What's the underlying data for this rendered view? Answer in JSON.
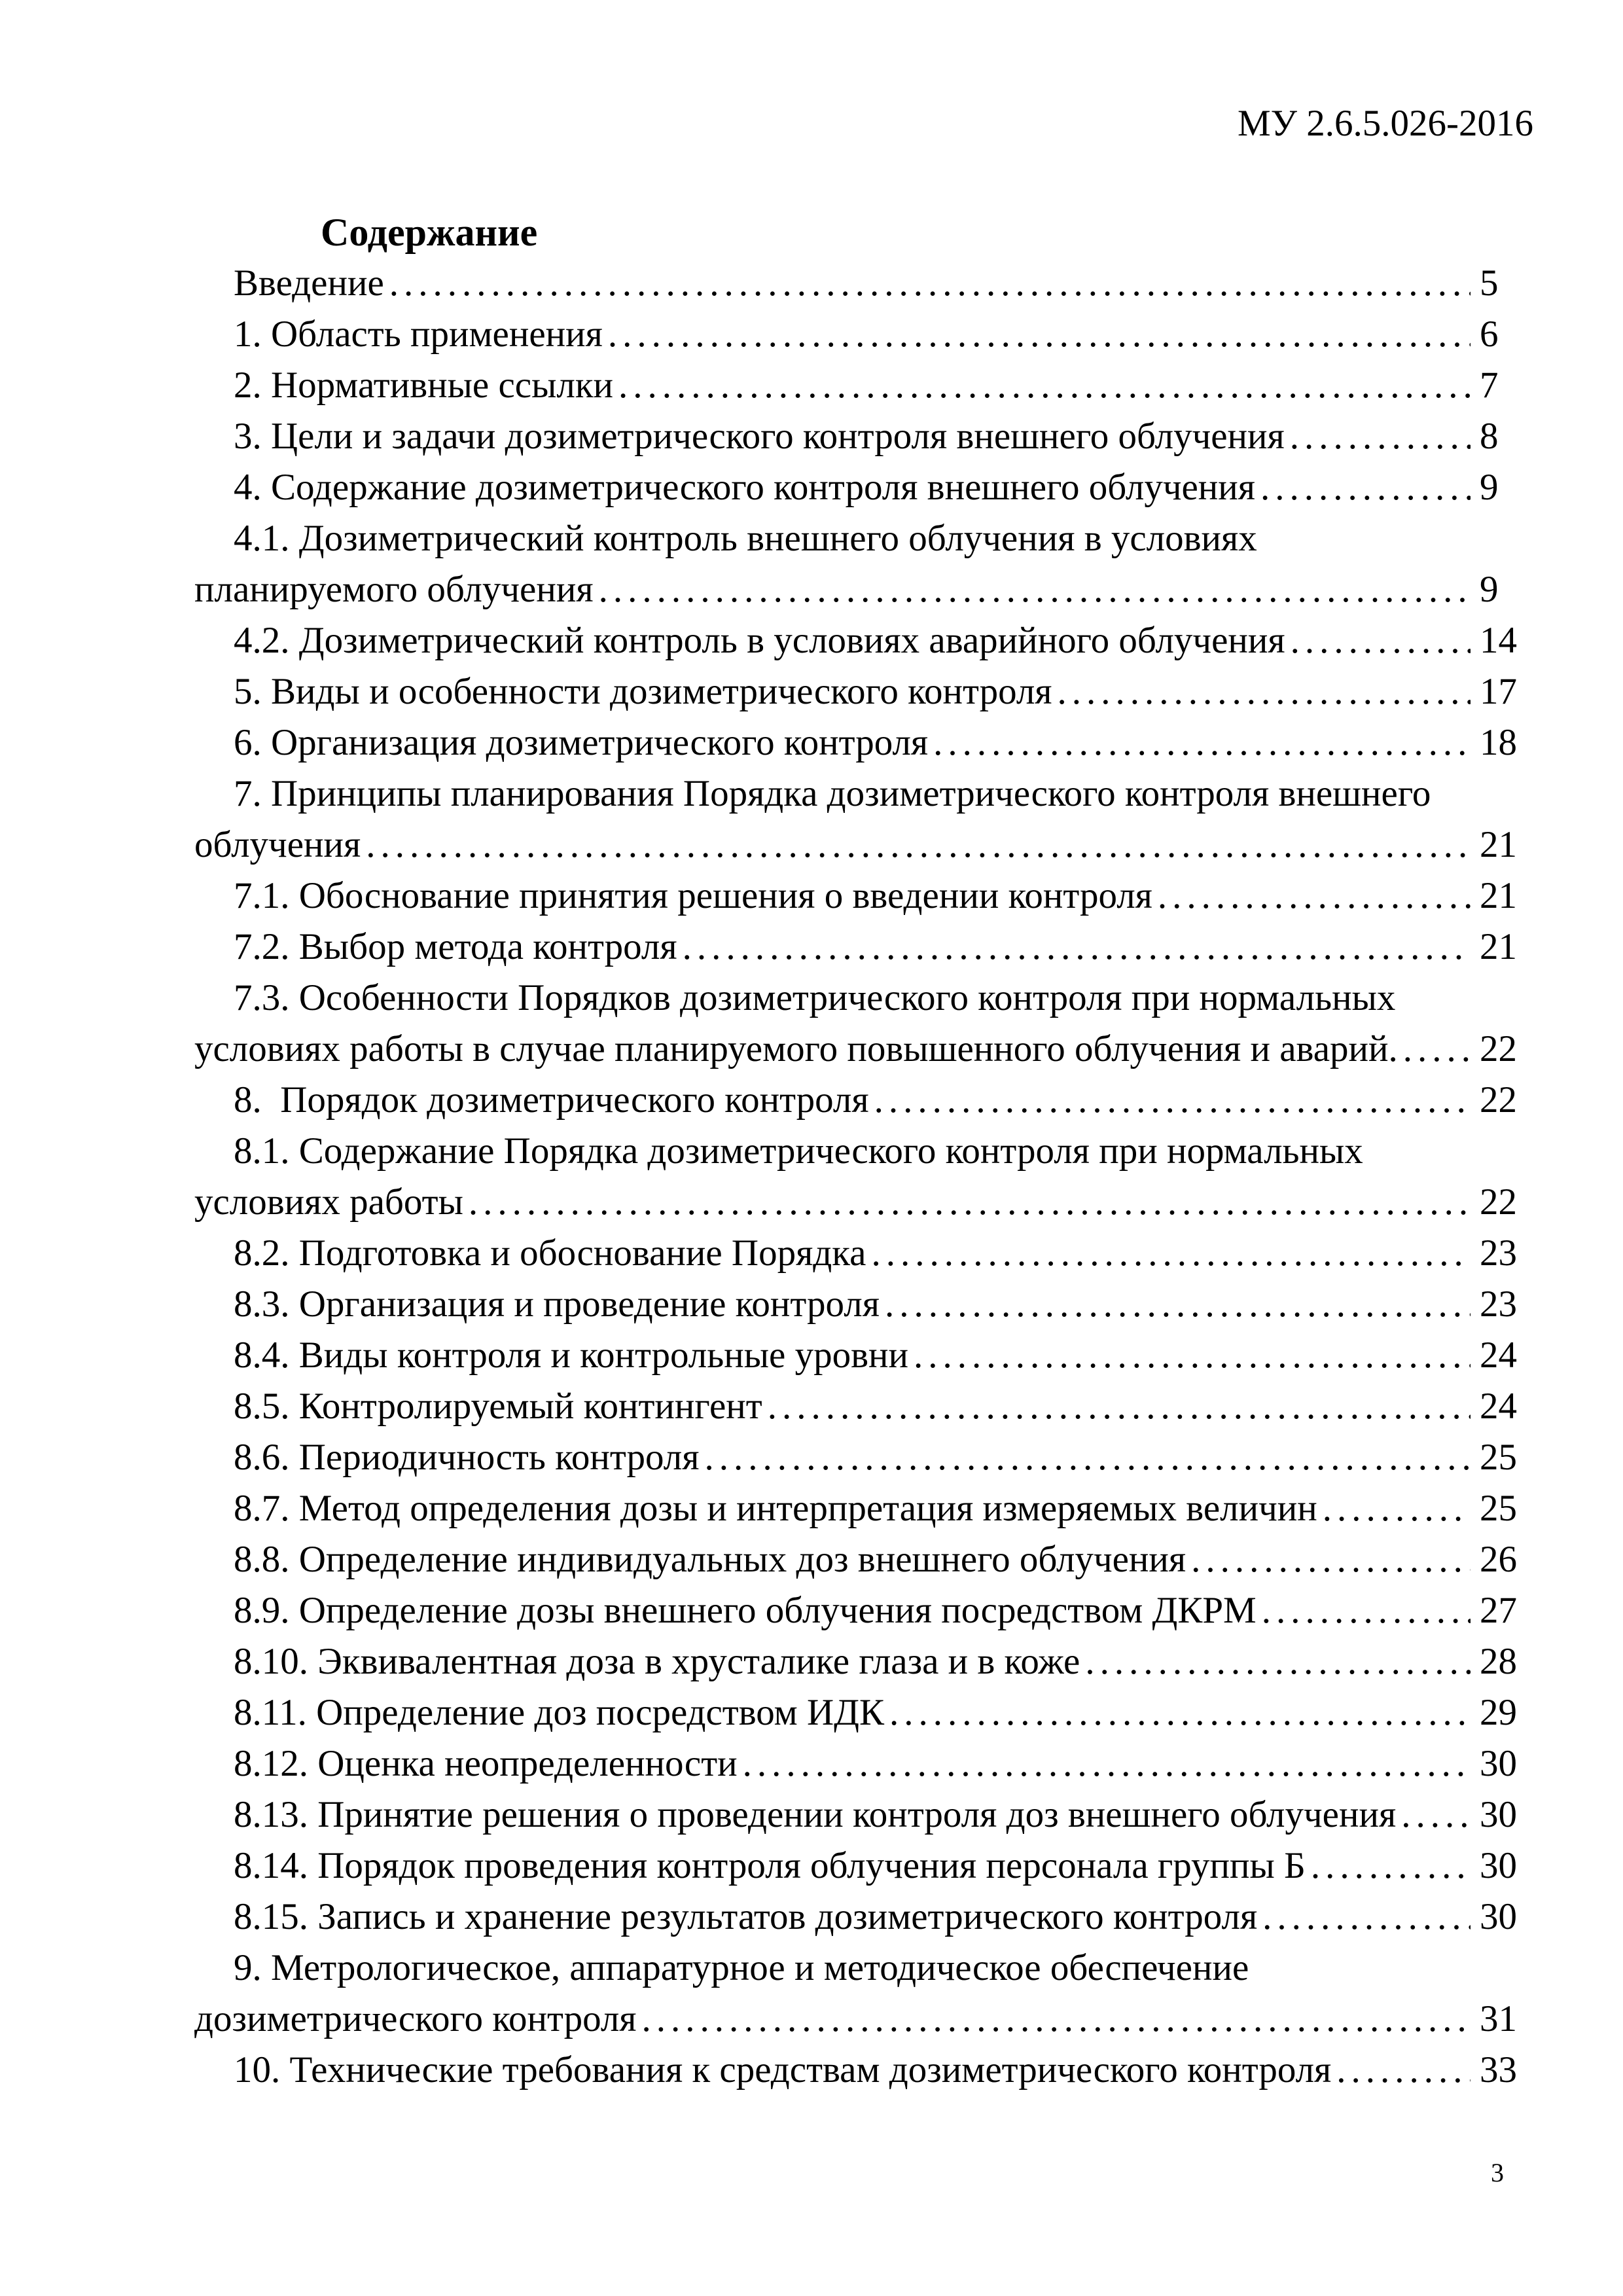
{
  "header": {
    "doc_code": "МУ 2.6.5.026-2016"
  },
  "toc": {
    "title": "Содержание",
    "lines": [
      {
        "indent": true,
        "text": "Введение",
        "page": "5"
      },
      {
        "indent": true,
        "text": "1. Область применения",
        "page": "6"
      },
      {
        "indent": true,
        "text": "2. Нормативные ссылки",
        "page": "7"
      },
      {
        "indent": true,
        "text": "3. Цели и задачи дозиметрического контроля внешнего облучения",
        "page": "8"
      },
      {
        "indent": true,
        "text": "4. Содержание дозиметрического контроля внешнего облучения",
        "page": "9"
      },
      {
        "indent": true,
        "text": "4.1. Дозиметрический контроль внешнего облучения в условиях",
        "page": null
      },
      {
        "indent": false,
        "text": "планируемого облучения",
        "page": "9"
      },
      {
        "indent": true,
        "text": "4.2. Дозиметрический контроль в условиях аварийного облучения",
        "page": "14"
      },
      {
        "indent": true,
        "text": "5. Виды и особенности дозиметрического контроля",
        "page": "17"
      },
      {
        "indent": true,
        "text": "6. Организация дозиметрического контроля",
        "page": "18"
      },
      {
        "indent": true,
        "text": "7. Принципы планирования Порядка дозиметрического контроля внешнего",
        "page": null
      },
      {
        "indent": false,
        "text": "облучения",
        "page": "21"
      },
      {
        "indent": true,
        "text": "7.1. Обоснование принятия решения о введении контроля",
        "page": "21"
      },
      {
        "indent": true,
        "text": "7.2. Выбор метода контроля",
        "page": "21"
      },
      {
        "indent": true,
        "text": "7.3. Особенности Порядков дозиметрического контроля при нормальных",
        "page": null
      },
      {
        "indent": false,
        "text": "условиях работы в случае планируемого повышенного облучения и аварий.",
        "page": "22"
      },
      {
        "indent": true,
        "text": "8.  Порядок дозиметрического контроля",
        "page": "22"
      },
      {
        "indent": true,
        "text": "8.1. Содержание Порядка дозиметрического контроля при нормальных",
        "page": null
      },
      {
        "indent": false,
        "text": "условиях работы",
        "page": "22"
      },
      {
        "indent": true,
        "text": "8.2. Подготовка и обоснование Порядка",
        "page": "23"
      },
      {
        "indent": true,
        "text": "8.3. Организация и проведение контроля",
        "page": "23"
      },
      {
        "indent": true,
        "text": "8.4. Виды контроля и контрольные уровни",
        "page": "24"
      },
      {
        "indent": true,
        "text": "8.5. Контролируемый контингент",
        "page": "24"
      },
      {
        "indent": true,
        "text": "8.6. Периодичность контроля",
        "page": "25"
      },
      {
        "indent": true,
        "text": "8.7. Метод определения дозы и интерпретация измеряемых величин",
        "page": "25"
      },
      {
        "indent": true,
        "text": "8.8. Определение индивидуальных доз внешнего облучения",
        "page": "26"
      },
      {
        "indent": true,
        "text": "8.9. Определение дозы внешнего облучения посредством ДКРМ",
        "page": "27"
      },
      {
        "indent": true,
        "text": "8.10. Эквивалентная доза в хрусталике глаза и в коже",
        "page": "28"
      },
      {
        "indent": true,
        "text": "8.11. Определение доз посредством ИДК",
        "page": "29"
      },
      {
        "indent": true,
        "text": "8.12. Оценка неопределенности",
        "page": "30"
      },
      {
        "indent": true,
        "text": "8.13. Принятие решения о проведении контроля доз внешнего облучения",
        "page": "30"
      },
      {
        "indent": true,
        "text": "8.14. Порядок проведения контроля облучения персонала группы Б",
        "page": "30"
      },
      {
        "indent": true,
        "text": "8.15. Запись и хранение результатов дозиметрического контроля",
        "page": "30"
      },
      {
        "indent": true,
        "text": "9. Метрологическое, аппаратурное и методическое обеспечение",
        "page": null
      },
      {
        "indent": false,
        "text": "дозиметрического контроля",
        "page": "31"
      },
      {
        "indent": true,
        "text": "10. Технические требования к средствам дозиметрического контроля",
        "page": "33"
      }
    ]
  },
  "footer": {
    "page_number": "3"
  }
}
